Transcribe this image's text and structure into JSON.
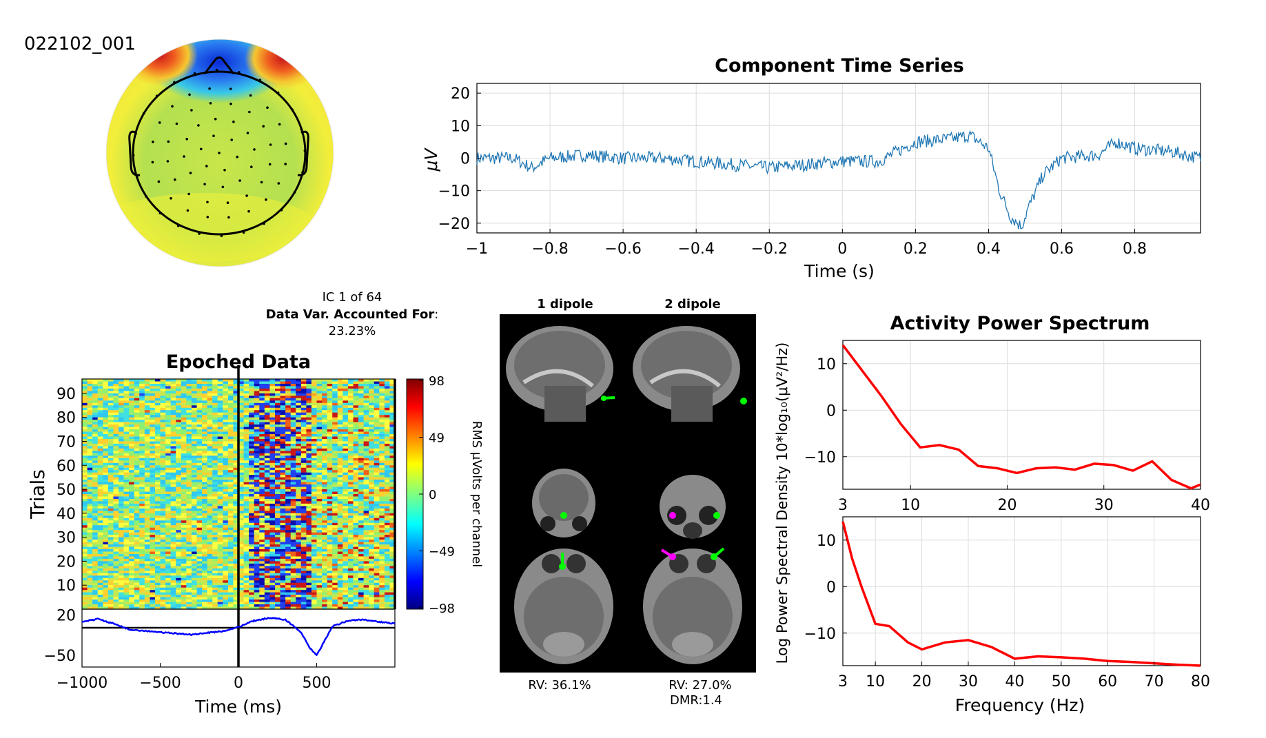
{
  "dataset_label": "022102_001",
  "ic_info": {
    "line1": "IC 1 of 64",
    "line2_bold": "Data Var. Accounted For",
    "line2_colon": ":",
    "line3": "23.23%"
  },
  "time_series": {
    "title": "Component Time Series",
    "xlabel": "Time (s)",
    "ylabel": "μV",
    "xticks": [
      "−1",
      "−0.8",
      "−0.6",
      "−0.4",
      "−0.2",
      "0",
      "0.2",
      "0.4",
      "0.6",
      "0.8"
    ],
    "yticks": [
      "20",
      "10",
      "0",
      "−10",
      "−20"
    ],
    "color": "#1f77b4"
  },
  "erp_image": {
    "title": "Epoched Data",
    "ylabel": "Trials",
    "xlabel": "Time (ms)",
    "yticks": [
      "90",
      "80",
      "70",
      "60",
      "50",
      "40",
      "30",
      "20",
      "10"
    ],
    "xticks": [
      "−1000",
      "−500",
      "0",
      "500"
    ],
    "erp_yticks": [
      "20",
      "−50"
    ],
    "colorbar_ticks": [
      "98",
      "49",
      "0",
      "−49",
      "−98"
    ],
    "colorbar_label": "RMS μVolts per channel"
  },
  "dipoles": {
    "col1": "1 dipole",
    "col2": "2 dipole",
    "rv1": "RV: 36.1%",
    "rv2": "RV: 27.0%",
    "dmr": "DMR:1.4"
  },
  "spectrum": {
    "title": "Activity Power Spectrum",
    "ylabel": "Log Power Spectral Density 10*log₁₀(μV²/Hz)",
    "xlabel": "Frequency (Hz)",
    "top_xticks": [
      "3",
      "10",
      "20",
      "30",
      "40"
    ],
    "bottom_xticks": [
      "3",
      "10",
      "20",
      "30",
      "40",
      "50",
      "60",
      "70",
      "80"
    ],
    "yticks": [
      "10",
      "0",
      "−10"
    ],
    "color": "#ff0000"
  },
  "chart_data": [
    {
      "type": "line",
      "title": "Component Time Series",
      "xlabel": "Time (s)",
      "ylabel": "μV",
      "xlim": [
        -1,
        0.98
      ],
      "ylim": [
        -23,
        23
      ],
      "x": [
        -1,
        -0.9,
        -0.85,
        -0.8,
        -0.7,
        -0.6,
        -0.5,
        -0.4,
        -0.3,
        -0.2,
        -0.1,
        0,
        0.1,
        0.15,
        0.2,
        0.3,
        0.35,
        0.4,
        0.43,
        0.46,
        0.49,
        0.51,
        0.55,
        0.6,
        0.7,
        0.75,
        0.8,
        0.9,
        0.98
      ],
      "y": [
        0,
        0,
        -3,
        0,
        1,
        0,
        0,
        -1,
        -2,
        -3,
        -2,
        -1,
        -1,
        2,
        5,
        6,
        7,
        3,
        -10,
        -18,
        -21,
        -15,
        -5,
        0,
        1,
        5,
        3,
        2,
        0
      ]
    },
    {
      "type": "line",
      "title": "Epoched Data",
      "xlabel": "Time (ms)",
      "xlim": [
        -1000,
        1000
      ],
      "ylim": [
        -70,
        30
      ],
      "x": [
        -1000,
        -900,
        -800,
        -700,
        -500,
        -300,
        -100,
        0,
        100,
        200,
        300,
        400,
        450,
        500,
        550,
        600,
        700,
        800,
        900,
        1000
      ],
      "y": [
        8,
        13,
        5,
        -5,
        -10,
        -14,
        -8,
        -1,
        10,
        15,
        12,
        -10,
        -35,
        -50,
        -25,
        0,
        10,
        12,
        8,
        5
      ]
    },
    {
      "type": "line",
      "title": "Activity Power Spectrum",
      "xlabel": "Frequency (Hz)",
      "xlim": [
        3,
        40
      ],
      "ylim": [
        -17,
        15
      ],
      "x": [
        3,
        5,
        7,
        9,
        11,
        13,
        15,
        17,
        19,
        21,
        23,
        25,
        27,
        29,
        31,
        33,
        35,
        37,
        39,
        40
      ],
      "y": [
        14,
        8.5,
        3,
        -3,
        -8,
        -7.5,
        -8.5,
        -12,
        -12.5,
        -13.5,
        -12.5,
        -12.3,
        -12.8,
        -11.5,
        -11.8,
        -13,
        -11,
        -15,
        -16.8,
        -16
      ]
    },
    {
      "type": "line",
      "xlabel": "Frequency (Hz)",
      "xlim": [
        3,
        80
      ],
      "ylim": [
        -17,
        15
      ],
      "x": [
        3,
        5,
        7,
        10,
        13,
        17,
        20,
        25,
        30,
        35,
        40,
        45,
        50,
        55,
        60,
        65,
        70,
        75,
        80
      ],
      "y": [
        14,
        6,
        0,
        -8,
        -8.5,
        -12,
        -13.5,
        -12,
        -11.5,
        -13,
        -15.5,
        -15,
        -15.2,
        -15.5,
        -16,
        -16.2,
        -16.5,
        -16.8,
        -17
      ]
    }
  ]
}
